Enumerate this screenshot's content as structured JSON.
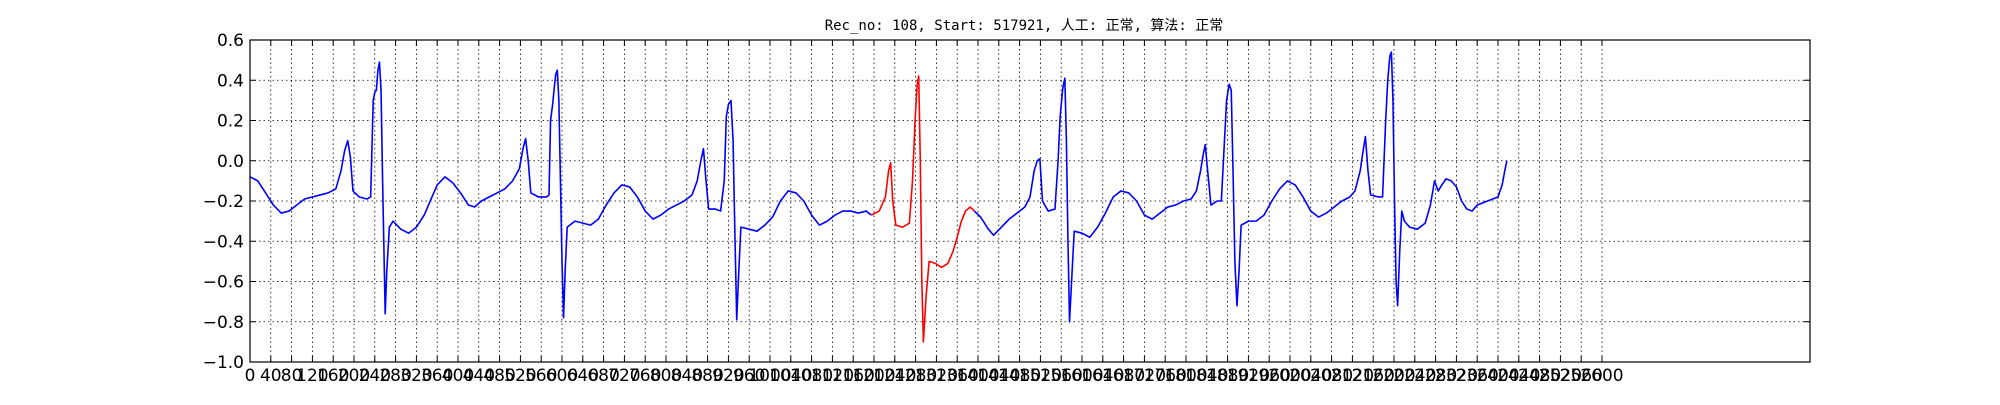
{
  "chart_data": {
    "type": "line",
    "title": "Rec_no: 108, Start: 517921, 人工: 正常, 算法: 正常",
    "xlabel": "",
    "ylabel": "",
    "xlim": [
      0,
      3000
    ],
    "ylim": [
      -1.0,
      0.6
    ],
    "grid": true,
    "grid_style": "dotted",
    "y_ticks": [
      -1.0,
      -0.8,
      -0.6,
      -0.4,
      -0.2,
      0.0,
      0.2,
      0.4,
      0.6
    ],
    "y_tick_labels": [
      "−1.0",
      "−0.8",
      "−0.6",
      "−0.4",
      "−0.2",
      "0.0",
      "0.2",
      "0.4",
      "0.6"
    ],
    "x_ticks": [
      0,
      40,
      80,
      120,
      160,
      200,
      240,
      280,
      320,
      360,
      400,
      440,
      480,
      520,
      560,
      600,
      640,
      680,
      720,
      760,
      800,
      840,
      880,
      920,
      960,
      1000,
      1040,
      1080,
      1120,
      1160,
      1200,
      1240,
      1280,
      1320,
      1360,
      1400,
      1440,
      1480,
      1520,
      1560,
      1600,
      1640,
      1680,
      1720,
      1760,
      1800,
      1840,
      1880,
      1920,
      1960,
      2000,
      2040,
      2080,
      2120,
      2160,
      2200,
      2240,
      2280,
      2320,
      2360,
      2400,
      2440,
      2480,
      2520,
      2560,
      2600
    ],
    "series": [
      {
        "color": "#0000ff",
        "points": [
          [
            0,
            -0.08
          ],
          [
            15,
            -0.1
          ],
          [
            30,
            -0.16
          ],
          [
            45,
            -0.22
          ],
          [
            60,
            -0.26
          ],
          [
            75,
            -0.25
          ],
          [
            90,
            -0.22
          ],
          [
            105,
            -0.19
          ],
          [
            120,
            -0.18
          ],
          [
            135,
            -0.17
          ],
          [
            150,
            -0.16
          ],
          [
            165,
            -0.14
          ],
          [
            175,
            -0.05
          ],
          [
            182,
            0.05
          ],
          [
            188,
            0.1
          ],
          [
            193,
            0.02
          ],
          [
            198,
            -0.15
          ],
          [
            210,
            -0.18
          ],
          [
            225,
            -0.19
          ],
          [
            232,
            -0.18
          ],
          [
            237,
            0.3
          ],
          [
            240,
            0.34
          ],
          [
            243,
            0.35
          ],
          [
            246,
            0.45
          ],
          [
            249,
            0.49
          ],
          [
            252,
            0.35
          ],
          [
            255,
            -0.1
          ],
          [
            258,
            -0.5
          ],
          [
            260,
            -0.76
          ],
          [
            263,
            -0.55
          ],
          [
            268,
            -0.33
          ],
          [
            275,
            -0.3
          ],
          [
            290,
            -0.34
          ],
          [
            305,
            -0.36
          ],
          [
            320,
            -0.33
          ],
          [
            335,
            -0.27
          ],
          [
            350,
            -0.18
          ],
          [
            360,
            -0.12
          ],
          [
            375,
            -0.08
          ],
          [
            390,
            -0.11
          ],
          [
            405,
            -0.16
          ],
          [
            420,
            -0.22
          ],
          [
            432,
            -0.23
          ],
          [
            445,
            -0.2
          ],
          [
            460,
            -0.18
          ],
          [
            475,
            -0.16
          ],
          [
            490,
            -0.14
          ],
          [
            505,
            -0.1
          ],
          [
            518,
            -0.04
          ],
          [
            525,
            0.06
          ],
          [
            530,
            0.11
          ],
          [
            535,
            0.0
          ],
          [
            540,
            -0.16
          ],
          [
            555,
            -0.18
          ],
          [
            570,
            -0.18
          ],
          [
            575,
            -0.17
          ],
          [
            578,
            0.2
          ],
          [
            582,
            0.28
          ],
          [
            585,
            0.36
          ],
          [
            588,
            0.43
          ],
          [
            591,
            0.45
          ],
          [
            594,
            0.3
          ],
          [
            597,
            -0.1
          ],
          [
            600,
            -0.5
          ],
          [
            603,
            -0.78
          ],
          [
            606,
            -0.55
          ],
          [
            610,
            -0.33
          ],
          [
            625,
            -0.3
          ],
          [
            640,
            -0.31
          ],
          [
            655,
            -0.32
          ],
          [
            670,
            -0.29
          ],
          [
            685,
            -0.22
          ],
          [
            700,
            -0.16
          ],
          [
            715,
            -0.12
          ],
          [
            730,
            -0.13
          ],
          [
            745,
            -0.18
          ],
          [
            760,
            -0.25
          ],
          [
            775,
            -0.29
          ],
          [
            790,
            -0.27
          ],
          [
            805,
            -0.24
          ],
          [
            820,
            -0.22
          ],
          [
            835,
            -0.2
          ],
          [
            850,
            -0.17
          ],
          [
            860,
            -0.1
          ],
          [
            867,
            0.0
          ],
          [
            872,
            0.06
          ],
          [
            877,
            -0.1
          ],
          [
            882,
            -0.24
          ],
          [
            895,
            -0.24
          ],
          [
            905,
            -0.25
          ],
          [
            912,
            -0.1
          ],
          [
            916,
            0.22
          ],
          [
            920,
            0.28
          ],
          [
            925,
            0.3
          ],
          [
            929,
            0.1
          ],
          [
            932,
            -0.3
          ],
          [
            936,
            -0.79
          ],
          [
            940,
            -0.55
          ],
          [
            944,
            -0.33
          ],
          [
            960,
            -0.34
          ],
          [
            975,
            -0.35
          ],
          [
            990,
            -0.32
          ],
          [
            1005,
            -0.28
          ],
          [
            1020,
            -0.2
          ],
          [
            1035,
            -0.15
          ],
          [
            1050,
            -0.16
          ],
          [
            1065,
            -0.2
          ],
          [
            1080,
            -0.27
          ],
          [
            1095,
            -0.32
          ],
          [
            1110,
            -0.3
          ],
          [
            1125,
            -0.27
          ],
          [
            1140,
            -0.25
          ],
          [
            1155,
            -0.25
          ],
          [
            1170,
            -0.26
          ],
          [
            1185,
            -0.25
          ],
          [
            1195,
            -0.27
          ]
        ]
      },
      {
        "color": "#ff0000",
        "points": [
          [
            1195,
            -0.27
          ],
          [
            1210,
            -0.25
          ],
          [
            1222,
            -0.18
          ],
          [
            1228,
            -0.05
          ],
          [
            1232,
            -0.01
          ],
          [
            1236,
            -0.2
          ],
          [
            1242,
            -0.32
          ],
          [
            1255,
            -0.33
          ],
          [
            1268,
            -0.31
          ],
          [
            1274,
            -0.1
          ],
          [
            1279,
            0.2
          ],
          [
            1283,
            0.38
          ],
          [
            1286,
            0.42
          ],
          [
            1289,
            0.0
          ],
          [
            1292,
            -0.6
          ],
          [
            1295,
            -0.9
          ],
          [
            1300,
            -0.68
          ],
          [
            1306,
            -0.5
          ],
          [
            1318,
            -0.51
          ],
          [
            1330,
            -0.53
          ],
          [
            1342,
            -0.51
          ],
          [
            1352,
            -0.45
          ],
          [
            1360,
            -0.38
          ],
          [
            1368,
            -0.3
          ],
          [
            1376,
            -0.25
          ],
          [
            1385,
            -0.23
          ],
          [
            1393,
            -0.25
          ]
        ]
      },
      {
        "color": "#0000ff",
        "points": [
          [
            1393,
            -0.25
          ],
          [
            1405,
            -0.28
          ],
          [
            1420,
            -0.34
          ],
          [
            1430,
            -0.37
          ],
          [
            1445,
            -0.33
          ],
          [
            1460,
            -0.29
          ],
          [
            1475,
            -0.26
          ],
          [
            1490,
            -0.23
          ],
          [
            1500,
            -0.18
          ],
          [
            1508,
            -0.05
          ],
          [
            1514,
            0.0
          ],
          [
            1519,
            0.01
          ],
          [
            1524,
            -0.2
          ],
          [
            1535,
            -0.25
          ],
          [
            1548,
            -0.24
          ],
          [
            1554,
            0.0
          ],
          [
            1558,
            0.22
          ],
          [
            1563,
            0.36
          ],
          [
            1567,
            0.41
          ],
          [
            1570,
            0.1
          ],
          [
            1573,
            -0.4
          ],
          [
            1576,
            -0.8
          ],
          [
            1580,
            -0.6
          ],
          [
            1585,
            -0.35
          ],
          [
            1600,
            -0.36
          ],
          [
            1615,
            -0.38
          ],
          [
            1630,
            -0.33
          ],
          [
            1645,
            -0.26
          ],
          [
            1660,
            -0.18
          ],
          [
            1675,
            -0.15
          ],
          [
            1690,
            -0.16
          ],
          [
            1705,
            -0.2
          ],
          [
            1720,
            -0.27
          ],
          [
            1735,
            -0.29
          ],
          [
            1750,
            -0.26
          ],
          [
            1765,
            -0.23
          ],
          [
            1780,
            -0.22
          ],
          [
            1795,
            -0.2
          ],
          [
            1810,
            -0.19
          ],
          [
            1820,
            -0.15
          ],
          [
            1828,
            -0.05
          ],
          [
            1833,
            0.03
          ],
          [
            1837,
            0.08
          ],
          [
            1842,
            -0.06
          ],
          [
            1848,
            -0.22
          ],
          [
            1860,
            -0.2
          ],
          [
            1868,
            -0.2
          ],
          [
            1874,
            0.1
          ],
          [
            1878,
            0.3
          ],
          [
            1883,
            0.38
          ],
          [
            1887,
            0.35
          ],
          [
            1890,
            0.0
          ],
          [
            1894,
            -0.5
          ],
          [
            1898,
            -0.72
          ],
          [
            1902,
            -0.55
          ],
          [
            1906,
            -0.32
          ],
          [
            1920,
            -0.3
          ],
          [
            1935,
            -0.3
          ],
          [
            1950,
            -0.27
          ],
          [
            1965,
            -0.2
          ],
          [
            1980,
            -0.14
          ],
          [
            1995,
            -0.1
          ],
          [
            2010,
            -0.12
          ],
          [
            2025,
            -0.18
          ],
          [
            2040,
            -0.25
          ],
          [
            2055,
            -0.28
          ],
          [
            2070,
            -0.26
          ],
          [
            2085,
            -0.23
          ],
          [
            2100,
            -0.2
          ],
          [
            2115,
            -0.18
          ],
          [
            2125,
            -0.15
          ],
          [
            2135,
            -0.05
          ],
          [
            2140,
            0.04
          ],
          [
            2145,
            0.12
          ],
          [
            2150,
            -0.05
          ],
          [
            2155,
            -0.17
          ],
          [
            2170,
            -0.18
          ],
          [
            2178,
            -0.18
          ],
          [
            2184,
            0.2
          ],
          [
            2188,
            0.4
          ],
          [
            2192,
            0.52
          ],
          [
            2195,
            0.54
          ],
          [
            2198,
            0.3
          ],
          [
            2201,
            -0.2
          ],
          [
            2204,
            -0.6
          ],
          [
            2207,
            -0.72
          ],
          [
            2211,
            -0.45
          ],
          [
            2215,
            -0.25
          ],
          [
            2220,
            -0.3
          ],
          [
            2230,
            -0.33
          ],
          [
            2245,
            -0.34
          ],
          [
            2260,
            -0.31
          ],
          [
            2270,
            -0.22
          ],
          [
            2278,
            -0.1
          ],
          [
            2285,
            -0.15
          ],
          [
            2292,
            -0.12
          ],
          [
            2300,
            -0.09
          ],
          [
            2310,
            -0.1
          ],
          [
            2320,
            -0.13
          ],
          [
            2330,
            -0.2
          ],
          [
            2340,
            -0.24
          ],
          [
            2350,
            -0.25
          ],
          [
            2360,
            -0.22
          ],
          [
            2370,
            -0.21
          ],
          [
            2380,
            -0.2
          ],
          [
            2390,
            -0.19
          ],
          [
            2400,
            -0.18
          ],
          [
            2408,
            -0.12
          ],
          [
            2413,
            -0.05
          ],
          [
            2417,
            0.0
          ]
        ]
      }
    ]
  }
}
